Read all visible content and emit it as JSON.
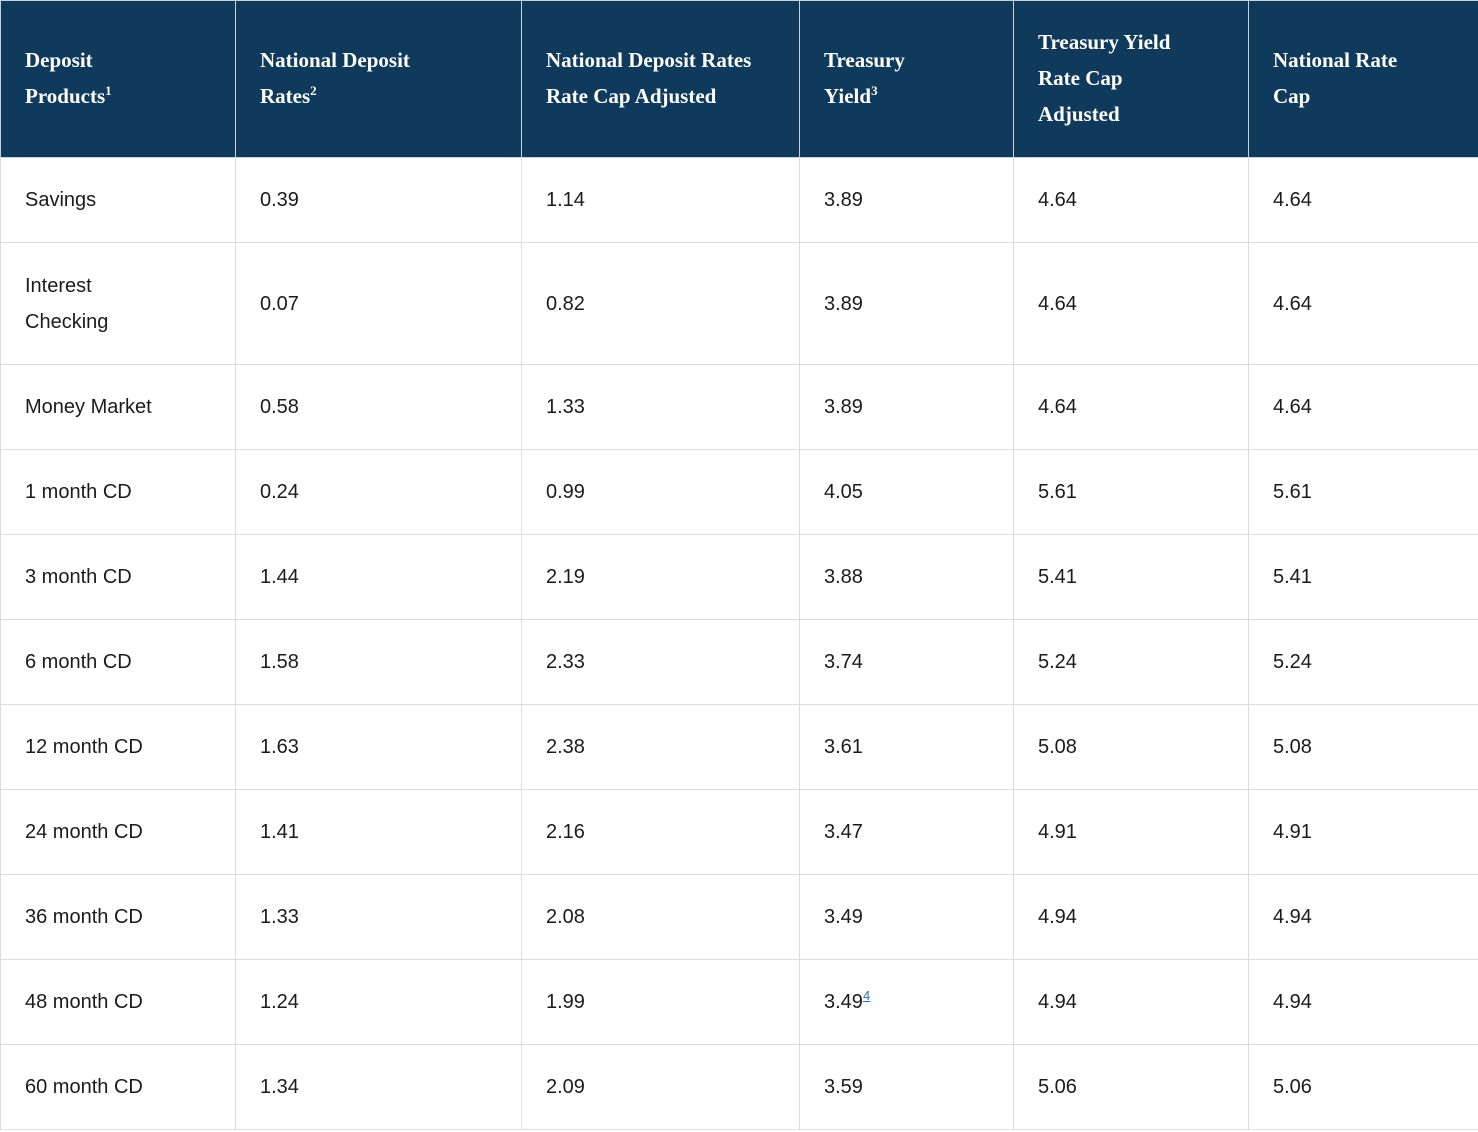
{
  "colors": {
    "header_bg": "#0f3a5c",
    "header_text": "#ffffff",
    "body_text": "#1b1b1b",
    "grid_line": "#dcdcdc",
    "footnote_link": "#2a6ebb"
  },
  "chart_data": {
    "type": "table",
    "title": "",
    "columns": [
      {
        "label": "Deposit\nProducts",
        "sup": "1"
      },
      {
        "label": "National Deposit\nRates",
        "sup": "2"
      },
      {
        "label": "National Deposit Rates\nRate Cap Adjusted",
        "sup": ""
      },
      {
        "label": "Treasury\nYield",
        "sup": "3"
      },
      {
        "label": "Treasury Yield\nRate Cap\nAdjusted",
        "sup": ""
      },
      {
        "label": "National Rate\nCap",
        "sup": ""
      }
    ],
    "rows": [
      {
        "product": "Savings",
        "values": [
          "0.39",
          "1.14",
          "3.89",
          "4.64",
          "4.64"
        ]
      },
      {
        "product": "Interest\nChecking",
        "tall": true,
        "values": [
          "0.07",
          "0.82",
          "3.89",
          "4.64",
          "4.64"
        ]
      },
      {
        "product": "Money Market",
        "values": [
          "0.58",
          "1.33",
          "3.89",
          "4.64",
          "4.64"
        ]
      },
      {
        "product": "1 month CD",
        "values": [
          "0.24",
          "0.99",
          "4.05",
          "5.61",
          "5.61"
        ]
      },
      {
        "product": "3 month CD",
        "values": [
          "1.44",
          "2.19",
          "3.88",
          "5.41",
          "5.41"
        ]
      },
      {
        "product": "6 month CD",
        "values": [
          "1.58",
          "2.33",
          "3.74",
          "5.24",
          "5.24"
        ]
      },
      {
        "product": "12 month CD",
        "values": [
          "1.63",
          "2.38",
          "3.61",
          "5.08",
          "5.08"
        ]
      },
      {
        "product": "24 month CD",
        "values": [
          "1.41",
          "2.16",
          "3.47",
          "4.91",
          "4.91"
        ]
      },
      {
        "product": "36 month CD",
        "values": [
          "1.33",
          "2.08",
          "3.49",
          "4.94",
          "4.94"
        ]
      },
      {
        "product": "48 month CD",
        "values": [
          "1.24",
          "1.99",
          "3.49",
          "4.94",
          "4.94"
        ],
        "footnote": {
          "col": 2,
          "label": "4"
        }
      },
      {
        "product": "60 month CD",
        "values": [
          "1.34",
          "2.09",
          "3.59",
          "5.06",
          "5.06"
        ]
      }
    ]
  }
}
